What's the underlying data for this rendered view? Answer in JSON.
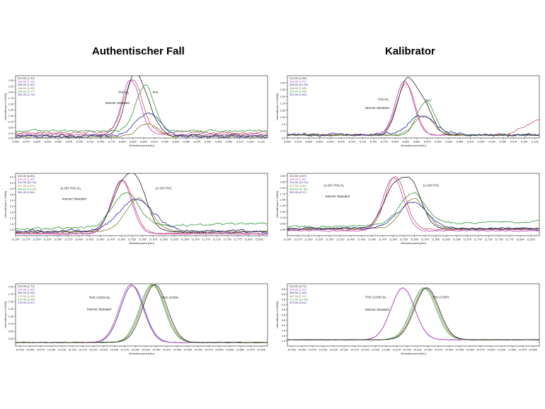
{
  "headings": {
    "left": "Authentischer Fall",
    "right": "Kalibrator"
  },
  "colors": {
    "black": "#222222",
    "red": "#c8505a",
    "magenta": "#c040c0",
    "green": "#2e9a3a",
    "olive": "#8a7a30",
    "blue": "#2a2a9a"
  },
  "chart_data": [
    {
      "type": "line",
      "id": "p1",
      "ylabel": "Intensität [cps X 10000]",
      "xlabel": "Retentionszeit [min]",
      "xlim": [
        8.55,
        9.14
      ],
      "ylim": [
        0.05,
        2.7
      ],
      "xticks": [
        "8.550",
        "8.575",
        "8.600",
        "8.625",
        "8.650",
        "8.675",
        "8.700",
        "8.725",
        "8.750",
        "8.775",
        "8.800",
        "8.825",
        "8.850",
        "8.875",
        "8.900",
        "8.925",
        "8.950",
        "8.975",
        "9.000",
        "9.025",
        "9.050",
        "9.075",
        "9.100",
        "9.125"
      ],
      "yticks": [
        "0.05",
        "0.25",
        "0.50",
        "0.75",
        "1.00",
        "1.25",
        "1.50",
        "1.75",
        "2.00",
        "2.25",
        "2.50"
      ],
      "legend": [
        {
          "text": "313.00 (1.31)",
          "color": "#222222"
        },
        {
          "text": "316.00 (1.16)",
          "color": "#c040c0"
        },
        {
          "text": "285.00 (1.42)",
          "color": "#2a2a9a"
        },
        {
          "text": "288.00 (2.45)",
          "color": "#8a7a30"
        },
        {
          "text": "328.00 (4.77)",
          "color": "#2e9a3a"
        },
        {
          "text": "331.00 (1.79)",
          "color": "#2a2a9a"
        }
      ],
      "annotations": [
        {
          "text": "THC-D₃",
          "x": 8.79,
          "y": 1.95
        },
        {
          "text": "Interner Standard",
          "x": 8.76,
          "y": 1.5
        },
        {
          "text": "THC",
          "x": 8.87,
          "y": 1.95
        }
      ],
      "series": [
        {
          "color": "#c8505a",
          "base": 0.28,
          "noise": 0.06,
          "peaks": [
            [
              8.825,
              2.28,
              0.022
            ]
          ]
        },
        {
          "color": "#c040c0",
          "base": 0.2,
          "noise": 0.04,
          "peaks": [
            [
              8.82,
              2.32,
              0.021
            ]
          ]
        },
        {
          "color": "#222222",
          "base": 0.15,
          "noise": 0.05,
          "peaks": [
            [
              8.827,
              2.4,
              0.021
            ],
            [
              8.86,
              0.9,
              0.02
            ]
          ]
        },
        {
          "color": "#2e9a3a",
          "base": 0.35,
          "noise": 0.05,
          "peaks": [
            [
              8.853,
              1.95,
              0.021
            ]
          ]
        },
        {
          "color": "#8a7a30",
          "base": 0.1,
          "noise": 0.05,
          "peaks": [
            [
              8.86,
              0.55,
              0.025
            ]
          ]
        },
        {
          "color": "#2a2a9a",
          "base": 0.12,
          "noise": 0.06,
          "peaks": [
            [
              8.86,
              0.95,
              0.03
            ]
          ]
        }
      ]
    },
    {
      "type": "line",
      "id": "p2",
      "ylabel": "Intensität [cps X 10000]",
      "xlabel": "Retentionszeit [min]",
      "xlim": [
        8.55,
        9.135
      ],
      "ylim": [
        0.5,
        2.75
      ],
      "xticks": [
        "8.550",
        "8.575",
        "8.600",
        "8.625",
        "8.650",
        "8.675",
        "8.700",
        "8.725",
        "8.750",
        "8.775",
        "8.800",
        "8.825",
        "8.850",
        "8.875",
        "8.900",
        "8.925",
        "8.950",
        "8.975",
        "9.000",
        "9.025",
        "9.050",
        "9.075",
        "9.100",
        "9.125"
      ],
      "yticks": [
        "0.5",
        "0.75",
        "1.0",
        "1.25",
        "1.50",
        "1.75",
        "2.00",
        "2.25",
        "2.50"
      ],
      "legend": [
        {
          "text": "313.00 (2.58)",
          "color": "#222222"
        },
        {
          "text": "316.00 (1.07)",
          "color": "#c040c0"
        },
        {
          "text": "285.00 (12.53)",
          "color": "#2a2a9a"
        },
        {
          "text": "288.00 (3.48)",
          "color": "#8a7a30"
        },
        {
          "text": "328.00 (4.03)",
          "color": "#2e9a3a"
        },
        {
          "text": "331.00 (1.69)",
          "color": "#2a2a9a"
        }
      ],
      "annotations": [
        {
          "text": "THC-D₃",
          "x": 8.76,
          "y": 1.85
        },
        {
          "text": "Interner Standard",
          "x": 8.73,
          "y": 1.55
        },
        {
          "text": "THC",
          "x": 8.87,
          "y": 1.82
        }
      ],
      "series": [
        {
          "color": "#c8505a",
          "base": 0.62,
          "noise": 0.03,
          "peaks": [
            [
              8.825,
              1.85,
              0.021
            ]
          ],
          "tail": [
            9.06,
            9.135,
            0.55
          ]
        },
        {
          "color": "#c040c0",
          "base": 0.6,
          "noise": 0.02,
          "peaks": [
            [
              8.822,
              1.95,
              0.021
            ]
          ]
        },
        {
          "color": "#222222",
          "base": 0.6,
          "noise": 0.03,
          "peaks": [
            [
              8.827,
              1.95,
              0.021
            ],
            [
              8.868,
              1.0,
              0.02
            ]
          ]
        },
        {
          "color": "#2e9a3a",
          "base": 0.6,
          "noise": 0.03,
          "peaks": [
            [
              8.872,
              1.2,
              0.021
            ]
          ]
        },
        {
          "color": "#8a7a30",
          "base": 0.6,
          "noise": 0.03,
          "peaks": [
            [
              8.866,
              0.7,
              0.022
            ]
          ]
        },
        {
          "color": "#2a2a9a",
          "base": 0.62,
          "noise": 0.06,
          "peaks": [
            [
              8.862,
              0.7,
              0.03
            ]
          ]
        }
      ]
    },
    {
      "type": "line",
      "id": "p3",
      "ylabel": "Intensität [cps X 10000]",
      "xlabel": "Retentionszeit [min]",
      "xlim": [
        11.25,
        11.845
      ],
      "ylim": [
        0.0,
        5.3
      ],
      "xticks": [
        "11.250",
        "11.275",
        "11.300",
        "11.325",
        "11.350",
        "11.375",
        "11.400",
        "11.425",
        "11.450",
        "11.475",
        "11.500",
        "11.525",
        "11.550",
        "11.575",
        "11.600",
        "11.625",
        "11.650",
        "11.675",
        "11.700",
        "11.725",
        "11.750",
        "11.775",
        "11.800",
        "11.825"
      ],
      "yticks": [
        "0.5",
        "1.0",
        "1.5",
        "2.0",
        "2.5",
        "3.0",
        "3.5",
        "4.0",
        "4.5",
        "5.0"
      ],
      "legend": [
        {
          "text": "313.00 (8.30)",
          "color": "#222222"
        },
        {
          "text": "316.00 (1.60)",
          "color": "#c040c0"
        },
        {
          "text": "314.00 (10.14)",
          "color": "#2a2a9a"
        },
        {
          "text": "317.00 (3.03)",
          "color": "#8a7a30"
        },
        {
          "text": "358.00 (14.22)",
          "color": "#2e9a3a"
        },
        {
          "text": "361.00 (4.94)",
          "color": "#2a2a9a"
        }
      ],
      "annotations": [
        {
          "text": "11-OH-THC-D₃",
          "x": 11.355,
          "y": 3.95
        },
        {
          "text": "Interner Standard",
          "x": 11.36,
          "y": 3.05
        },
        {
          "text": "11-OH-THC",
          "x": 11.58,
          "y": 3.95
        }
      ],
      "series": [
        {
          "color": "#2e9a3a",
          "base": 0.55,
          "noise": 0.12,
          "peaks": [
            [
              11.51,
              2.9,
              0.03
            ]
          ],
          "rise": 0.5
        },
        {
          "color": "#c8505a",
          "base": 0.2,
          "noise": 0.05,
          "peaks": [
            [
              11.502,
              4.5,
              0.025
            ]
          ]
        },
        {
          "color": "#c040c0",
          "base": 0.15,
          "noise": 0.05,
          "peaks": [
            [
              11.5,
              4.6,
              0.024
            ]
          ]
        },
        {
          "color": "#222222",
          "base": 0.3,
          "noise": 0.06,
          "peaks": [
            [
              11.5,
              3.5,
              0.026
            ],
            [
              11.54,
              3.4,
              0.024
            ]
          ]
        },
        {
          "color": "#8a7a30",
          "base": 0.35,
          "noise": 0.06,
          "peaks": [
            [
              11.54,
              2.8,
              0.03
            ]
          ]
        },
        {
          "color": "#2a2a9a",
          "base": 0.4,
          "noise": 0.15,
          "peaks": [
            [
              11.535,
              2.7,
              0.04
            ]
          ]
        }
      ]
    },
    {
      "type": "line",
      "id": "p4",
      "ylabel": "Intensität [cps X 10000]",
      "xlabel": "Retentionszeit [min]",
      "xlim": [
        11.25,
        11.845
      ],
      "ylim": [
        0.0,
        2.6
      ],
      "xticks": [
        "11.250",
        "11.275",
        "11.300",
        "11.325",
        "11.350",
        "11.375",
        "11.400",
        "11.425",
        "11.450",
        "11.475",
        "11.500",
        "11.525",
        "11.550",
        "11.575",
        "11.600",
        "11.625",
        "11.650",
        "11.675",
        "11.700",
        "11.725",
        "11.750",
        "11.775",
        "11.800",
        "11.825"
      ],
      "yticks": [
        "0.25",
        "0.50",
        "0.75",
        "1.00",
        "1.25",
        "1.50",
        "1.75",
        "2.00",
        "2.25",
        "2.50"
      ],
      "legend": [
        {
          "text": "313.00 (3.57)",
          "color": "#222222"
        },
        {
          "text": "316.00 (1.80)",
          "color": "#c040c0"
        },
        {
          "text": "314.00 (10.21)",
          "color": "#2a2a9a"
        },
        {
          "text": "317.00 (3.32)",
          "color": "#8a7a30"
        },
        {
          "text": "358.00 (11.50)",
          "color": "#2e9a3a"
        },
        {
          "text": "361.00 (4.17)",
          "color": "#2a2a9a"
        }
      ],
      "annotations": [
        {
          "text": "11-OH-THC-D₃",
          "x": 11.335,
          "y": 2.05
        },
        {
          "text": "Interner Standard",
          "x": 11.34,
          "y": 1.6
        },
        {
          "text": "11-OH-THC",
          "x": 11.57,
          "y": 2.05
        }
      ],
      "series": [
        {
          "color": "#2e9a3a",
          "base": 0.35,
          "noise": 0.05,
          "peaks": [
            [
              11.545,
              1.3,
              0.03
            ]
          ],
          "rise": 0.25
        },
        {
          "color": "#c8505a",
          "base": 0.25,
          "noise": 0.03,
          "peaks": [
            [
              11.505,
              2.2,
              0.024
            ]
          ]
        },
        {
          "color": "#c040c0",
          "base": 0.2,
          "noise": 0.03,
          "peaks": [
            [
              11.5,
              2.22,
              0.024
            ]
          ]
        },
        {
          "color": "#222222",
          "base": 0.28,
          "noise": 0.03,
          "peaks": [
            [
              11.5,
              1.6,
              0.025
            ],
            [
              11.545,
              1.7,
              0.024
            ]
          ]
        },
        {
          "color": "#8a7a30",
          "base": 0.3,
          "noise": 0.03,
          "peaks": [
            [
              11.548,
              1.25,
              0.028
            ]
          ]
        },
        {
          "color": "#2a2a9a",
          "base": 0.3,
          "noise": 0.05,
          "peaks": [
            [
              11.545,
              1.1,
              0.035
            ]
          ]
        }
      ]
    },
    {
      "type": "line",
      "id": "p5",
      "ylabel": "Intensität [cps X 10000]",
      "xlabel": "Retentionszeit [min]",
      "xlim": [
        14.015,
        14.615
      ],
      "ylim": [
        0.0,
        2.1
      ],
      "xticks": [
        "14.025",
        "14.050",
        "14.075",
        "14.100",
        "14.125",
        "14.150",
        "14.175",
        "14.200",
        "14.225",
        "14.250",
        "14.275",
        "14.300",
        "14.325",
        "14.350",
        "14.375",
        "14.400",
        "14.425",
        "14.450",
        "14.475",
        "14.500",
        "14.525",
        "14.550",
        "14.575",
        "14.600"
      ],
      "yticks": [
        "0.25",
        "0.50",
        "0.75",
        "1.00",
        "1.25",
        "1.50",
        "1.75",
        "2.00"
      ],
      "legend": [
        {
          "text": "313.00 (1.72)",
          "color": "#222222"
        },
        {
          "text": "316.00 (1.66)",
          "color": "#c040c0"
        },
        {
          "text": "369.00 (2.39)",
          "color": "#2a2a9a"
        },
        {
          "text": "372.00 (2.05)",
          "color": "#8a7a30"
        },
        {
          "text": "375.00 (2.65)",
          "color": "#2e9a3a"
        },
        {
          "text": "375.00 (4.97)",
          "color": "#2a2a9a"
        }
      ],
      "annotations": [
        {
          "text": "THC-COOH-D₃",
          "x": 14.19,
          "y": 1.6
        },
        {
          "text": "Interner Standard",
          "x": 14.185,
          "y": 1.2
        },
        {
          "text": "THC-COOH",
          "x": 14.363,
          "y": 1.6
        }
      ],
      "series": [
        {
          "color": "#2a2a9a",
          "base": 0.12,
          "noise": 0.01,
          "peaks": [
            [
              14.293,
              1.92,
              0.028
            ]
          ]
        },
        {
          "color": "#c040c0",
          "base": 0.12,
          "noise": 0.01,
          "peaks": [
            [
              14.29,
              1.95,
              0.028
            ]
          ]
        },
        {
          "color": "#2e9a3a",
          "base": 0.12,
          "noise": 0.01,
          "peaks": [
            [
              14.34,
              1.95,
              0.029
            ]
          ]
        },
        {
          "color": "#8a7a30",
          "base": 0.12,
          "noise": 0.01,
          "peaks": [
            [
              14.343,
              1.93,
              0.029
            ]
          ]
        },
        {
          "color": "#222222",
          "base": 0.12,
          "noise": 0.01,
          "peaks": [
            [
              14.347,
              1.95,
              0.029
            ]
          ]
        }
      ]
    },
    {
      "type": "line",
      "id": "p6",
      "ylabel": "Intensität [cps X 10000]",
      "xlabel": "Retentionszeit [min]",
      "xlim": [
        14.015,
        14.615
      ],
      "ylim": [
        1.0,
        7.0
      ],
      "xticks": [
        "14.025",
        "14.050",
        "14.075",
        "14.100",
        "14.125",
        "14.150",
        "14.175",
        "14.200",
        "14.225",
        "14.250",
        "14.275",
        "14.300",
        "14.325",
        "14.350",
        "14.375",
        "14.400",
        "14.425",
        "14.450",
        "14.475",
        "14.500",
        "14.525",
        "14.550",
        "14.575",
        "14.600"
      ],
      "yticks": [
        "1.5",
        "2.0",
        "2.5",
        "3.0",
        "3.5",
        "4.0",
        "4.5",
        "5.0",
        "5.5",
        "6.0",
        "6.5"
      ],
      "legend": [
        {
          "text": "313.00 (5.72)",
          "color": "#222222"
        },
        {
          "text": "316.00 (1.25)",
          "color": "#c040c0"
        },
        {
          "text": "369.00 (1.69)",
          "color": "#2a2a9a"
        },
        {
          "text": "367.00 (2.12)",
          "color": "#8a7a30"
        },
        {
          "text": "372.00 (12.49)",
          "color": "#2e9a3a"
        },
        {
          "text": "375.00 (3.01)",
          "color": "#2a2a9a"
        }
      ],
      "annotations": [
        {
          "text": "THC-COOH-D₃",
          "x": 14.2,
          "y": 5.6
        },
        {
          "text": "Interner Standard",
          "x": 14.2,
          "y": 4.4
        },
        {
          "text": "THC-COOH",
          "x": 14.36,
          "y": 5.6
        }
      ],
      "series": [
        {
          "color": "#2a2a9a",
          "base": 1.6,
          "noise": 0.02,
          "peaks": [
            [
              14.29,
              5.0,
              0.028
            ]
          ]
        },
        {
          "color": "#c040c0",
          "base": 1.6,
          "noise": 0.02,
          "peaks": [
            [
              14.29,
              5.0,
              0.028
            ]
          ]
        },
        {
          "color": "#2e9a3a",
          "base": 1.6,
          "noise": 0.02,
          "peaks": [
            [
              14.34,
              5.0,
              0.029
            ]
          ]
        },
        {
          "color": "#8a7a30",
          "base": 1.6,
          "noise": 0.02,
          "peaks": [
            [
              14.344,
              4.98,
              0.029
            ]
          ]
        },
        {
          "color": "#222222",
          "base": 1.6,
          "noise": 0.02,
          "peaks": [
            [
              14.347,
              5.0,
              0.029
            ]
          ]
        }
      ]
    }
  ]
}
